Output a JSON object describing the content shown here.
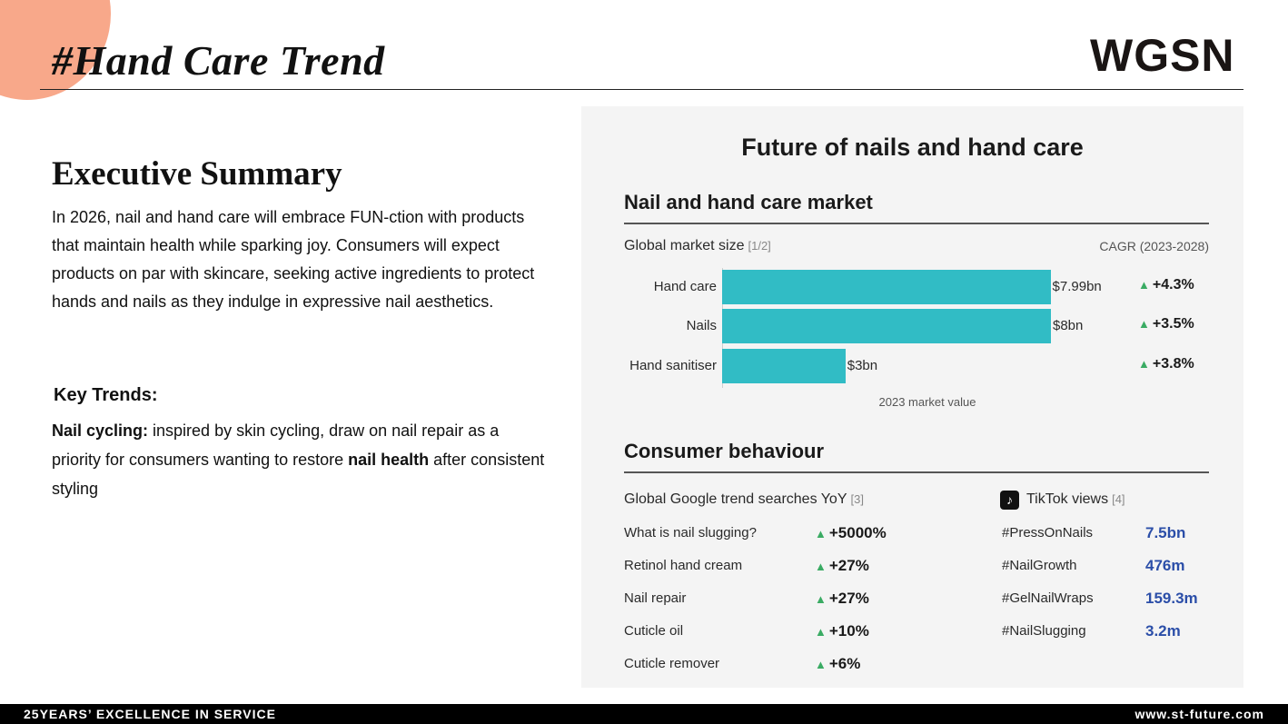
{
  "header": {
    "title": "#Hand Care Trend",
    "logo": "WGSN"
  },
  "summary": {
    "title": "Executive Summary",
    "text": "In 2026, nail and hand care will embrace FUN-ction with products that maintain health while sparking joy. Consumers will expect products on par with skincare, seeking active ingredients to protect hands and nails as they indulge in expressive nail aesthetics."
  },
  "key_trends": {
    "title": "Key Trends:",
    "lead": "Nail cycling:",
    "text_a": " inspired by skin cycling, draw on nail repair as a priority for consumers wanting to restore ",
    "bold": "nail health",
    "text_b": " after consistent styling"
  },
  "panel": {
    "title": "Future of nails and hand care",
    "market": {
      "title": "Nail and hand care market",
      "label": "Global market size",
      "ref": "[1/2]",
      "cagr_label": "CAGR (2023-2028)",
      "axis_label": "2023 market value"
    },
    "consumer": {
      "title": "Consumer behaviour",
      "google_label": "Global Google trend searches YoY",
      "google_ref": "[3]",
      "tiktok_label": "TikTok views",
      "tiktok_ref": "[4]",
      "google_rows": [
        {
          "term": "What is nail slugging?",
          "value": "+5000%"
        },
        {
          "term": "Retinol hand cream",
          "value": "+27%"
        },
        {
          "term": "Nail repair",
          "value": "+27%"
        },
        {
          "term": "Cuticle oil",
          "value": "+10%"
        },
        {
          "term": "Cuticle remover",
          "value": "+6%"
        }
      ],
      "tiktok_rows": [
        {
          "tag": "#PressOnNails",
          "views": "7.5bn"
        },
        {
          "tag": "#NailGrowth",
          "views": "476m"
        },
        {
          "tag": "#GelNailWraps",
          "views": "159.3m"
        },
        {
          "tag": "#NailSlugging",
          "views": "3.2m"
        }
      ]
    }
  },
  "chart_data": {
    "type": "bar",
    "orientation": "horizontal",
    "categories": [
      "Hand care",
      "Nails",
      "Hand sanitiser"
    ],
    "values": [
      7.99,
      8,
      3
    ],
    "value_labels": [
      "$7.99bn",
      "$8bn",
      "$3bn"
    ],
    "cagr": [
      "+4.3%",
      "+3.5%",
      "+3.8%"
    ],
    "xlabel": "2023 market value",
    "xlim": [
      0,
      8
    ],
    "bar_color": "#31bcc5"
  },
  "footer": {
    "left": "25YEARS’ EXCELLENCE IN SERVICE",
    "right": "www.st-future.com"
  },
  "colors": {
    "accent_blob": "#f8a88a",
    "up_arrow": "#3aab63",
    "tiktok_value": "#2b4ea8"
  }
}
